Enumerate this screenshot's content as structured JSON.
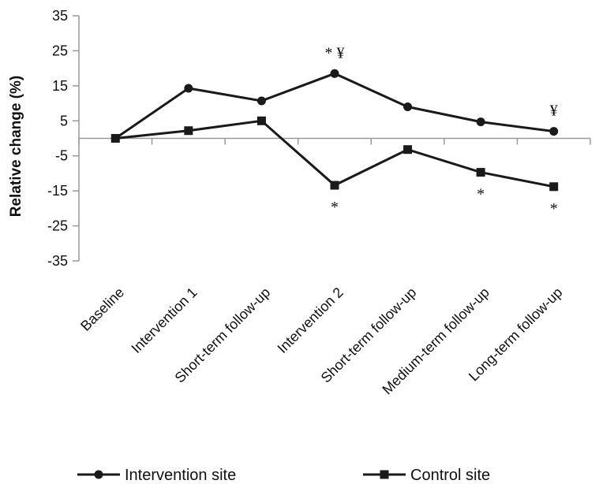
{
  "chart_data": {
    "type": "line",
    "title": "",
    "xlabel": "",
    "ylabel": "Relative change (%)",
    "ylim": [
      -35,
      35
    ],
    "yticks": [
      "35",
      "25",
      "15",
      "5",
      "-5",
      "-15",
      "-25",
      "-35"
    ],
    "categories": [
      "Baseline",
      "Intervention 1",
      "Short-term follow-up",
      "Intervention 2",
      "Short-term follow-up",
      "Medium-term follow-up",
      "Long-term follow-up"
    ],
    "series": [
      {
        "name": "Intervention site",
        "marker": "circle",
        "color": "#1a1a1a",
        "values": [
          0,
          14.3,
          10.7,
          18.5,
          9.0,
          4.7,
          2.0
        ]
      },
      {
        "name": "Control site",
        "marker": "square",
        "color": "#1a1a1a",
        "values": [
          0,
          2.2,
          5.0,
          -13.4,
          -3.2,
          -9.7,
          -13.8
        ]
      }
    ],
    "annotations": [
      {
        "category": 3,
        "value": 18.5,
        "text": "* ¥",
        "position": "above"
      },
      {
        "category": 6,
        "value": 2.0,
        "text": "¥",
        "position": "above"
      },
      {
        "category": 3,
        "value": -13.4,
        "text": "*",
        "position": "below"
      },
      {
        "category": 5,
        "value": -9.7,
        "text": "*",
        "position": "below"
      },
      {
        "category": 6,
        "value": -13.8,
        "text": "*",
        "position": "below"
      }
    ],
    "legend": {
      "placement": "bottom"
    }
  }
}
